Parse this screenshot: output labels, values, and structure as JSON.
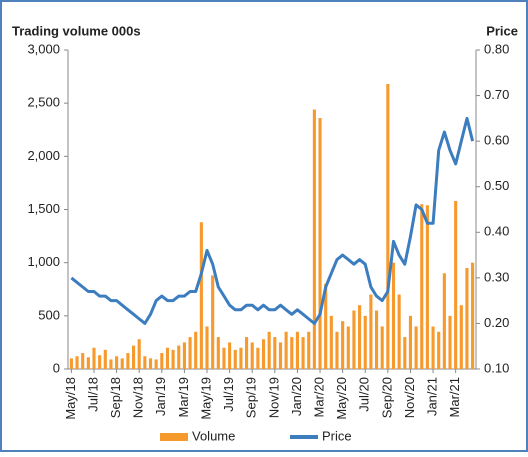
{
  "chart_data": {
    "type": "bar-line",
    "y_title": "Trading volume 000s",
    "y2_title": "Price",
    "x": [
      0,
      0.5,
      1,
      1.5,
      2,
      2.5,
      3,
      3.5,
      4,
      4.5,
      5,
      5.5,
      6,
      6.5,
      7,
      7.5,
      8,
      8.5,
      9,
      9.5,
      10,
      10.5,
      11,
      11.5,
      12,
      12.5,
      13,
      13.5,
      14,
      14.5,
      15,
      15.5,
      16,
      16.5,
      17,
      17.5,
      18,
      18.5,
      19,
      19.5,
      20,
      20.5,
      21,
      21.5,
      22,
      22.5,
      23,
      23.5,
      24,
      24.5,
      25,
      25.5,
      26,
      26.5,
      27,
      27.5,
      28,
      28.5,
      29,
      29.5,
      30,
      30.5,
      31,
      31.5,
      32,
      32.5,
      33,
      33.5,
      34,
      34.5,
      35,
      35.5
    ],
    "xlim": [
      -0.3,
      35.8
    ],
    "xticks": [
      {
        "value": 0,
        "label": "May/18"
      },
      {
        "value": 2,
        "label": "Jul/18"
      },
      {
        "value": 4,
        "label": "Sep/18"
      },
      {
        "value": 6,
        "label": "Nov/18"
      },
      {
        "value": 8,
        "label": "Jan/19"
      },
      {
        "value": 10,
        "label": "Mar/19"
      },
      {
        "value": 12,
        "label": "May/19"
      },
      {
        "value": 14,
        "label": "Jul/19"
      },
      {
        "value": 16,
        "label": "Sep/19"
      },
      {
        "value": 18,
        "label": "Nov/19"
      },
      {
        "value": 20,
        "label": "Jan/20"
      },
      {
        "value": 22,
        "label": "Mar/20"
      },
      {
        "value": 24,
        "label": "May/20"
      },
      {
        "value": 26,
        "label": "Jul/20"
      },
      {
        "value": 28,
        "label": "Sep/20"
      },
      {
        "value": 30,
        "label": "Nov/20"
      },
      {
        "value": 32,
        "label": "Jan/21"
      },
      {
        "value": 34,
        "label": "Mar/21"
      }
    ],
    "ylim": [
      0,
      3000
    ],
    "yticks": [
      0,
      500,
      {
        "value": 1000,
        "label": "1,000"
      },
      {
        "value": 1500,
        "label": "1,500"
      },
      {
        "value": 2000,
        "label": "2,000"
      },
      {
        "value": 2500,
        "label": "2,500"
      },
      {
        "value": 3000,
        "label": "3,000"
      }
    ],
    "y2lim": [
      0.1,
      0.8
    ],
    "y2ticks": [
      {
        "value": 0.1,
        "label": "0.10"
      },
      {
        "value": 0.2,
        "label": "0.20"
      },
      {
        "value": 0.3,
        "label": "0.30"
      },
      {
        "value": 0.4,
        "label": "0.40"
      },
      {
        "value": 0.5,
        "label": "0.50"
      },
      {
        "value": 0.6,
        "label": "0.60"
      },
      {
        "value": 0.7,
        "label": "0.70"
      },
      {
        "value": 0.8,
        "label": "0.80"
      }
    ],
    "series": [
      {
        "name": "Volume",
        "color": "#f79a2e",
        "kind": "bar",
        "values": [
          100,
          120,
          150,
          110,
          200,
          130,
          180,
          90,
          120,
          100,
          150,
          220,
          280,
          120,
          100,
          90,
          150,
          200,
          180,
          220,
          250,
          300,
          350,
          1380,
          400,
          880,
          300,
          200,
          250,
          180,
          200,
          300,
          250,
          200,
          280,
          350,
          300,
          250,
          350,
          300,
          350,
          300,
          350,
          2440,
          2360,
          800,
          500,
          350,
          450,
          400,
          550,
          600,
          500,
          700,
          550,
          400,
          2680,
          1000,
          700,
          300,
          500,
          400,
          1550,
          1540,
          400,
          350,
          900,
          500,
          1580,
          600,
          950,
          1000
        ]
      },
      {
        "name": "Price",
        "color": "#3c7dc0",
        "kind": "line",
        "axis": "y2",
        "values": [
          0.3,
          0.29,
          0.28,
          0.27,
          0.27,
          0.26,
          0.26,
          0.25,
          0.25,
          0.24,
          0.23,
          0.22,
          0.21,
          0.2,
          0.22,
          0.25,
          0.26,
          0.25,
          0.25,
          0.26,
          0.26,
          0.27,
          0.27,
          0.31,
          0.36,
          0.33,
          0.28,
          0.26,
          0.24,
          0.23,
          0.23,
          0.24,
          0.24,
          0.23,
          0.24,
          0.23,
          0.23,
          0.24,
          0.23,
          0.22,
          0.23,
          0.22,
          0.21,
          0.2,
          0.22,
          0.28,
          0.31,
          0.34,
          0.35,
          0.34,
          0.33,
          0.34,
          0.33,
          0.28,
          0.26,
          0.25,
          0.27,
          0.38,
          0.35,
          0.33,
          0.39,
          0.46,
          0.45,
          0.42,
          0.42,
          0.58,
          0.62,
          0.58,
          0.55,
          0.6,
          0.65,
          0.6
        ]
      }
    ]
  }
}
